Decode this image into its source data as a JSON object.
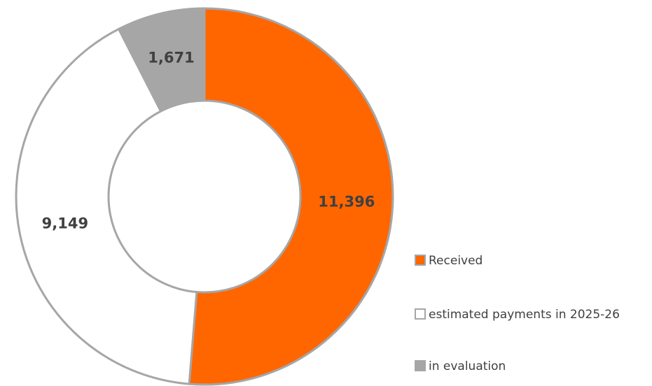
{
  "chart_data": {
    "type": "donut",
    "categories": [
      "Received",
      "estimated payments in 2025-26",
      "in evaluation"
    ],
    "values": [
      11396,
      9149,
      1671
    ],
    "value_labels": [
      "11,396",
      "9,149",
      "1,671"
    ],
    "colors": [
      "#ff6600",
      "#ffffff",
      "#a6a6a6"
    ],
    "legend": "bottom-right"
  }
}
